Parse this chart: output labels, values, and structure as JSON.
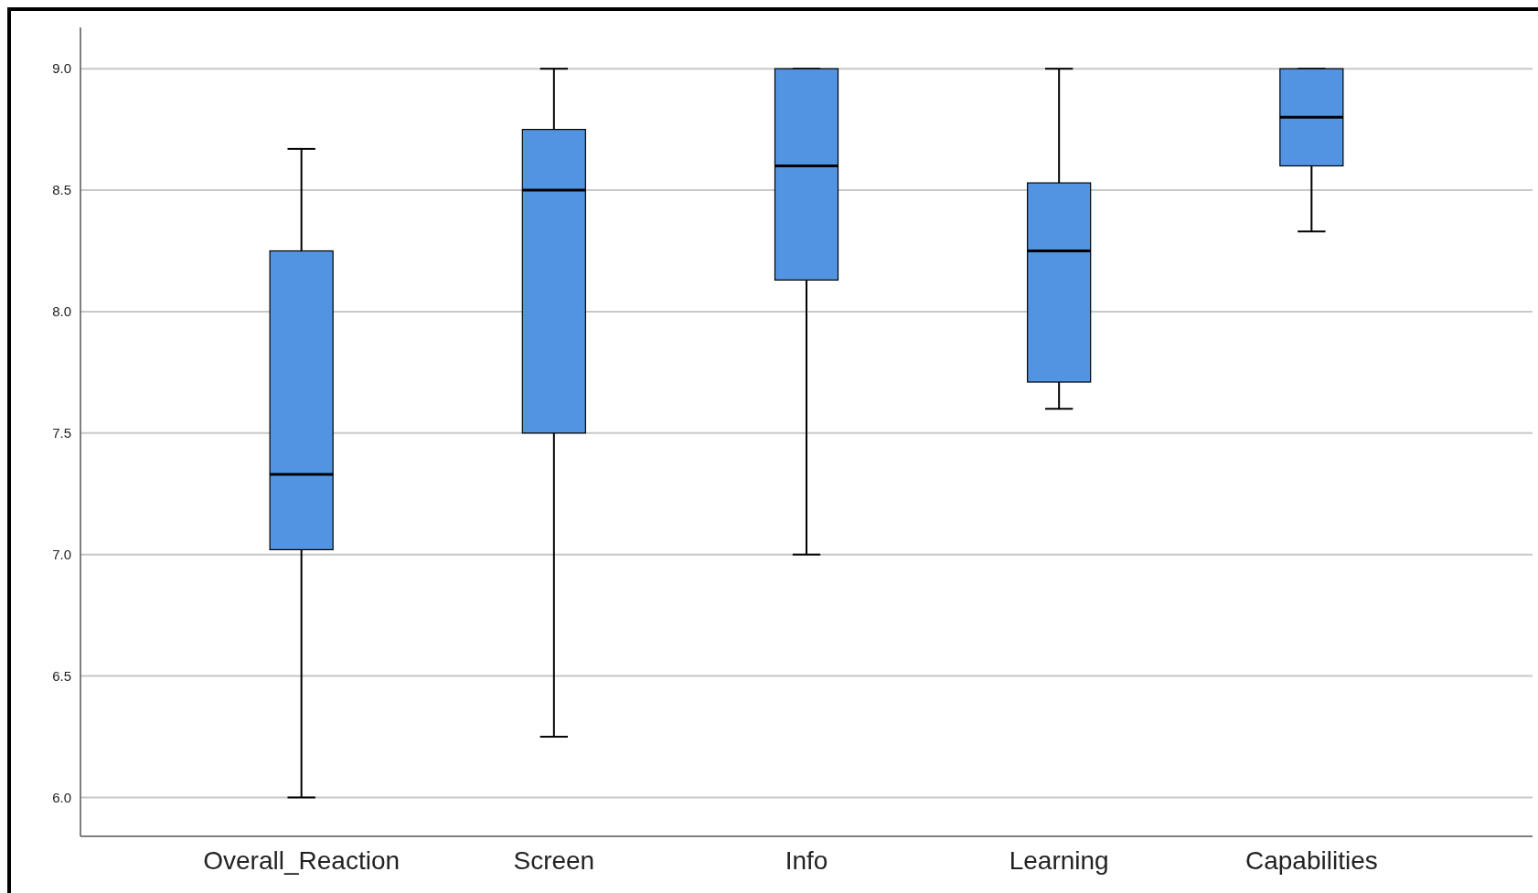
{
  "chart_data": {
    "type": "box",
    "categories": [
      "Overall_Reaction",
      "Screen",
      "Info",
      "Learning",
      "Capabilities"
    ],
    "boxes": [
      {
        "low": 6.0,
        "q1": 7.02,
        "median": 7.33,
        "q3": 8.25,
        "high": 8.67
      },
      {
        "low": 6.25,
        "q1": 7.5,
        "median": 8.5,
        "q3": 8.75,
        "high": 9.0
      },
      {
        "low": 7.0,
        "q1": 8.13,
        "median": 8.6,
        "q3": 9.0,
        "high": 9.0
      },
      {
        "low": 7.6,
        "q1": 7.71,
        "median": 8.25,
        "q3": 8.53,
        "high": 9.0
      },
      {
        "low": 8.33,
        "q1": 8.6,
        "median": 8.8,
        "q3": 9.0,
        "high": 9.0
      }
    ],
    "color": "#5294e2",
    "ylim": [
      5.84,
      9.17
    ],
    "yticks": [
      {
        "value": 6,
        "label": "6.0"
      },
      {
        "value": 6.5,
        "label": "6.5"
      },
      {
        "value": 7,
        "label": "7.0"
      },
      {
        "value": 7.5,
        "label": "7.5"
      },
      {
        "value": 8,
        "label": "8.0"
      },
      {
        "value": 8.5,
        "label": "8.5"
      },
      {
        "value": 9,
        "label": "9.0"
      }
    ],
    "grid": "y"
  }
}
